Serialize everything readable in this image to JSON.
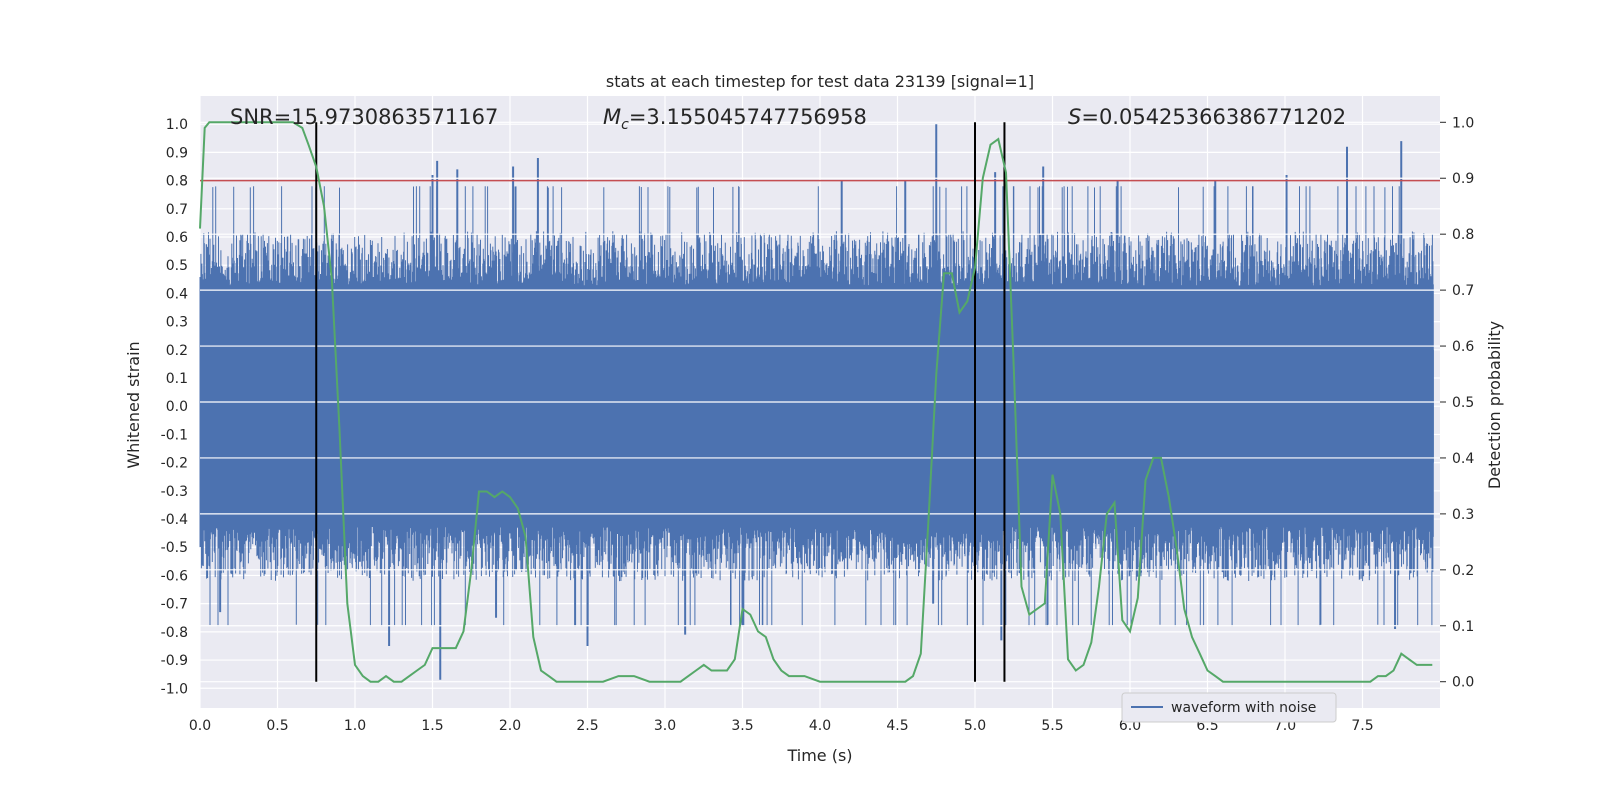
{
  "chart_data": {
    "type": "line",
    "title": "stats at each timestep for test data 23139 [signal=1]",
    "xlabel": "Time (s)",
    "ylabel_left": "Whitened strain",
    "ylabel_right": "Detection probability",
    "xlim": [
      0.0,
      8.0
    ],
    "ylim_left": [
      -1.07,
      1.1
    ],
    "ylim_right": [
      -0.047,
      1.047
    ],
    "x_ticks": [
      "0.0",
      "0.5",
      "1.0",
      "1.5",
      "2.0",
      "2.5",
      "3.0",
      "3.5",
      "4.0",
      "4.5",
      "5.0",
      "5.5",
      "6.0",
      "6.5",
      "7.0",
      "7.5"
    ],
    "y_ticks_left": [
      "-1.0",
      "-0.9",
      "-0.8",
      "-0.7",
      "-0.6",
      "-0.5",
      "-0.4",
      "-0.3",
      "-0.2",
      "-0.1",
      "0.0",
      "0.1",
      "0.2",
      "0.3",
      "0.4",
      "0.5",
      "0.6",
      "0.7",
      "0.8",
      "0.9",
      "1.0"
    ],
    "y_ticks_right": [
      "0.0",
      "0.1",
      "0.2",
      "0.3",
      "0.4",
      "0.5",
      "0.6",
      "0.7",
      "0.8",
      "0.9",
      "1.0"
    ],
    "grid": true,
    "legend_position": "lower-right",
    "annotations": {
      "snr": "SNR=15.9730863571167",
      "mc_symbol": "M",
      "mc_sub": "c",
      "mc_value": "=3.155045747756958",
      "s_symbol": "S",
      "s_value": "=0.05425366386771202"
    },
    "series": [
      {
        "name": "waveform with noise",
        "color": "#4c72b0",
        "axis": "left",
        "kind": "dense-noise",
        "envelope_typical": 0.45,
        "spikes": [
          {
            "x": 0.13,
            "y": -0.73
          },
          {
            "x": 1.22,
            "y": -0.85
          },
          {
            "x": 1.5,
            "y": 0.82
          },
          {
            "x": 1.53,
            "y": 0.87
          },
          {
            "x": 1.55,
            "y": -0.97
          },
          {
            "x": 1.66,
            "y": 0.84
          },
          {
            "x": 1.91,
            "y": -0.75
          },
          {
            "x": 2.02,
            "y": 0.85
          },
          {
            "x": 2.18,
            "y": 0.88
          },
          {
            "x": 2.42,
            "y": -0.78
          },
          {
            "x": 2.5,
            "y": -0.85
          },
          {
            "x": 3.13,
            "y": -0.81
          },
          {
            "x": 3.5,
            "y": -0.78
          },
          {
            "x": 4.14,
            "y": 0.8
          },
          {
            "x": 4.55,
            "y": 0.8
          },
          {
            "x": 4.75,
            "y": 1.0
          },
          {
            "x": 4.73,
            "y": -0.7
          },
          {
            "x": 5.13,
            "y": 0.83
          },
          {
            "x": 5.17,
            "y": -0.83
          },
          {
            "x": 5.44,
            "y": 0.85
          },
          {
            "x": 5.92,
            "y": 0.8
          },
          {
            "x": 6.55,
            "y": 0.8
          },
          {
            "x": 7.01,
            "y": 0.82
          },
          {
            "x": 7.4,
            "y": 0.92
          },
          {
            "x": 7.75,
            "y": 0.94
          },
          {
            "x": 7.71,
            "y": -0.79
          }
        ]
      },
      {
        "name": "",
        "color": "#55a868",
        "axis": "right",
        "kind": "line",
        "x": [
          0.0,
          0.03,
          0.06,
          0.1,
          0.15,
          0.2,
          0.25,
          0.3,
          0.4,
          0.5,
          0.55,
          0.6,
          0.66,
          0.7,
          0.75,
          0.8,
          0.85,
          0.9,
          0.95,
          1.0,
          1.05,
          1.1,
          1.15,
          1.2,
          1.25,
          1.3,
          1.35,
          1.4,
          1.45,
          1.5,
          1.55,
          1.6,
          1.65,
          1.7,
          1.75,
          1.8,
          1.85,
          1.9,
          1.95,
          2.0,
          2.05,
          2.1,
          2.15,
          2.2,
          2.25,
          2.3,
          2.4,
          2.5,
          2.6,
          2.7,
          2.8,
          2.9,
          3.0,
          3.1,
          3.15,
          3.2,
          3.25,
          3.3,
          3.35,
          3.4,
          3.45,
          3.5,
          3.55,
          3.6,
          3.65,
          3.7,
          3.75,
          3.8,
          3.85,
          3.9,
          4.0,
          4.1,
          4.2,
          4.3,
          4.4,
          4.5,
          4.55,
          4.6,
          4.65,
          4.7,
          4.75,
          4.8,
          4.85,
          4.9,
          4.95,
          5.0,
          5.05,
          5.1,
          5.15,
          5.2,
          5.25,
          5.3,
          5.35,
          5.4,
          5.45,
          5.5,
          5.55,
          5.6,
          5.65,
          5.7,
          5.75,
          5.8,
          5.85,
          5.9,
          5.95,
          6.0,
          6.05,
          6.1,
          6.15,
          6.2,
          6.25,
          6.3,
          6.35,
          6.4,
          6.45,
          6.5,
          6.55,
          6.6,
          6.7,
          6.8,
          6.9,
          7.0,
          7.1,
          7.2,
          7.3,
          7.4,
          7.5,
          7.55,
          7.6,
          7.65,
          7.7,
          7.75,
          7.8,
          7.85,
          7.9,
          7.95
        ],
        "y": [
          0.81,
          0.99,
          1.0,
          1.0,
          1.0,
          1.0,
          1.0,
          1.0,
          1.0,
          1.0,
          1.0,
          1.0,
          0.99,
          0.96,
          0.92,
          0.85,
          0.72,
          0.45,
          0.14,
          0.03,
          0.01,
          0.0,
          0.0,
          0.01,
          0.0,
          0.0,
          0.01,
          0.02,
          0.03,
          0.06,
          0.06,
          0.06,
          0.06,
          0.09,
          0.2,
          0.34,
          0.34,
          0.33,
          0.34,
          0.33,
          0.31,
          0.26,
          0.08,
          0.02,
          0.01,
          0.0,
          0.0,
          0.0,
          0.0,
          0.01,
          0.01,
          0.0,
          0.0,
          0.0,
          0.01,
          0.02,
          0.03,
          0.02,
          0.02,
          0.02,
          0.04,
          0.13,
          0.12,
          0.09,
          0.08,
          0.04,
          0.02,
          0.01,
          0.01,
          0.01,
          0.0,
          0.0,
          0.0,
          0.0,
          0.0,
          0.0,
          0.0,
          0.01,
          0.05,
          0.29,
          0.55,
          0.73,
          0.73,
          0.66,
          0.68,
          0.74,
          0.9,
          0.96,
          0.97,
          0.91,
          0.56,
          0.17,
          0.12,
          0.13,
          0.14,
          0.37,
          0.3,
          0.04,
          0.02,
          0.03,
          0.07,
          0.17,
          0.3,
          0.32,
          0.11,
          0.09,
          0.15,
          0.36,
          0.4,
          0.4,
          0.33,
          0.24,
          0.13,
          0.08,
          0.05,
          0.02,
          0.01,
          0.0,
          0.0,
          0.0,
          0.0,
          0.0,
          0.0,
          0.0,
          0.0,
          0.0,
          0.0,
          0.0,
          0.01,
          0.01,
          0.02,
          0.05,
          0.04,
          0.03,
          0.03,
          0.03
        ]
      }
    ],
    "threshold": {
      "axis": "left",
      "y": 0.8,
      "color": "#c44e52"
    },
    "vertical_markers": [
      0.75,
      5.0,
      5.19
    ]
  }
}
